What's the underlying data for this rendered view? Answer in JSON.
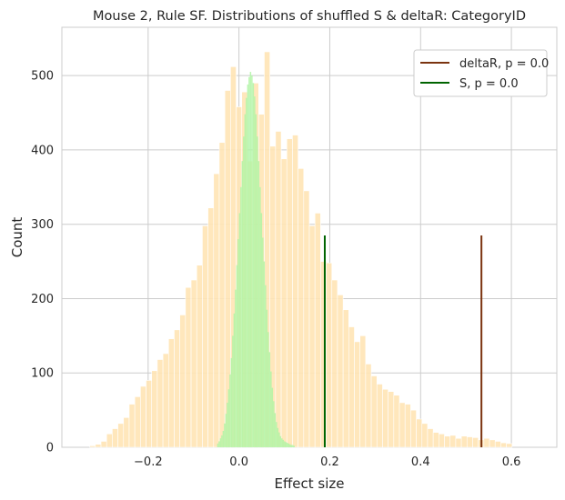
{
  "chart_data": {
    "type": "bar",
    "title": "Mouse 2, Rule SF. Distributions of shuffled S & deltaR: CategoryID",
    "xlabel": "Effect size",
    "ylabel": "Count",
    "xlim": [
      -0.39,
      0.7
    ],
    "ylim": [
      0,
      565
    ],
    "xticks": [
      -0.2,
      0.0,
      0.2,
      0.4,
      0.6
    ],
    "xtick_labels": [
      "−0.2",
      "0.0",
      "0.2",
      "0.4",
      "0.6"
    ],
    "yticks": [
      0,
      100,
      200,
      300,
      400,
      500
    ],
    "ytick_labels": [
      "0",
      "100",
      "200",
      "300",
      "400",
      "500"
    ],
    "grid": true,
    "legend_position": "top-right",
    "series": [
      {
        "kind": "histogram",
        "color": "#ffe4b5",
        "bin_width": 0.0124,
        "bin_start": -0.3286,
        "counts": [
          2,
          4,
          8,
          18,
          25,
          32,
          40,
          58,
          68,
          82,
          90,
          103,
          118,
          126,
          146,
          158,
          178,
          215,
          225,
          245,
          298,
          322,
          368,
          410,
          480,
          512,
          458,
          478,
          385,
          490,
          448,
          532,
          405,
          425,
          388,
          415,
          420,
          375,
          345,
          298,
          315,
          250,
          248,
          225,
          205,
          185,
          162,
          142,
          150,
          112,
          96,
          85,
          78,
          75,
          70,
          60,
          58,
          50,
          38,
          32,
          25,
          20,
          18,
          15,
          16,
          12,
          15,
          14,
          13,
          10,
          12,
          10,
          8,
          6,
          5
        ]
      },
      {
        "kind": "histogram",
        "color": "#b0f5a5",
        "bin_width": 0.003,
        "bin_start": -0.048,
        "counts": [
          5,
          8,
          12,
          16,
          22,
          32,
          45,
          60,
          78,
          98,
          120,
          150,
          180,
          212,
          245,
          280,
          315,
          350,
          385,
          418,
          448,
          470,
          488,
          498,
          505,
          500,
          490,
          472,
          448,
          418,
          385,
          350,
          315,
          282,
          250,
          218,
          185,
          155,
          128,
          102,
          80,
          62,
          46,
          34,
          26,
          20,
          15,
          12,
          10,
          8,
          7,
          6,
          5,
          4,
          3,
          3,
          2
        ]
      },
      {
        "kind": "vline",
        "name": "deltaR, p = 0.0",
        "x": 0.534,
        "y0": 0,
        "y1": 285,
        "color": "#7b3410"
      },
      {
        "kind": "vline",
        "name": "S, p = 0.0",
        "x": 0.189,
        "y0": 0,
        "y1": 285,
        "color": "#006400"
      }
    ]
  }
}
